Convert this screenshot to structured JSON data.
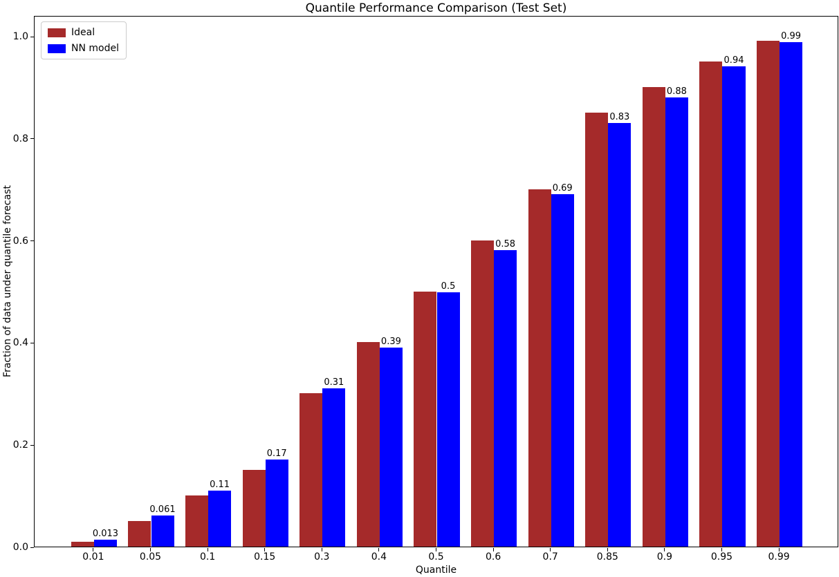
{
  "chart_data": {
    "type": "bar",
    "title": "Quantile Performance Comparison (Test Set)",
    "xlabel": "Quantile",
    "ylabel": "Fraction of data under quantile forecast",
    "categories": [
      "0.01",
      "0.05",
      "0.1",
      "0.15",
      "0.3",
      "0.4",
      "0.5",
      "0.6",
      "0.7",
      "0.85",
      "0.9",
      "0.95",
      "0.99"
    ],
    "series": [
      {
        "name": "Ideal",
        "color": "#a52a2a",
        "values": [
          0.01,
          0.05,
          0.1,
          0.15,
          0.3,
          0.4,
          0.5,
          0.6,
          0.7,
          0.85,
          0.9,
          0.95,
          0.99
        ]
      },
      {
        "name": "NN model",
        "color": "#0000ff",
        "values": [
          0.013,
          0.061,
          0.11,
          0.17,
          0.31,
          0.39,
          0.498,
          0.58,
          0.69,
          0.83,
          0.88,
          0.94,
          0.988
        ]
      }
    ],
    "bar_labels": [
      "0.013",
      "0.061",
      "0.11",
      "0.17",
      "0.31",
      "0.39",
      "0.5",
      "0.58",
      "0.69",
      "0.83",
      "0.88",
      "0.94",
      "0.99"
    ],
    "ytick_labels": [
      "0.0",
      "0.2",
      "0.4",
      "0.6",
      "0.8",
      "1.0"
    ],
    "yticks": [
      0.0,
      0.2,
      0.4,
      0.6,
      0.8,
      1.0
    ],
    "ylim": [
      0,
      1.04
    ],
    "legend_position": "upper left",
    "grid": false,
    "axis_color": "#000000",
    "background_color": "#ffffff"
  }
}
